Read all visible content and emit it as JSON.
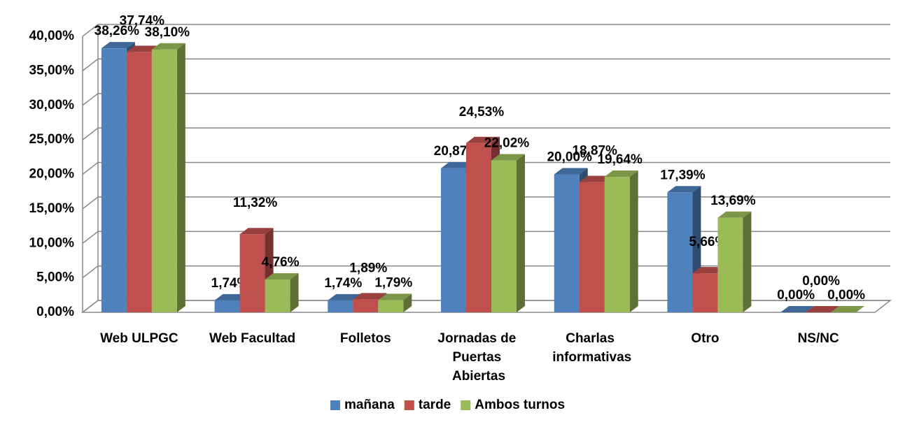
{
  "chart_data": {
    "type": "bar3d",
    "categories": [
      "Web ULPGC",
      "Web Facultad",
      "Folletos",
      "Jornadas de Puertas Abiertas",
      "Charlas informativas",
      "Otro",
      "NS/NC"
    ],
    "series": [
      {
        "name": "mañana",
        "color": "#4f81bd",
        "values": [
          38.26,
          1.74,
          1.74,
          20.87,
          20.0,
          17.39,
          0.0
        ],
        "value_labels": [
          "38,26%",
          "1,74%",
          "1,74%",
          "20,87%",
          "20,00%",
          "17,39%",
          "0,00%"
        ]
      },
      {
        "name": "tarde",
        "color": "#c0504d",
        "values": [
          37.74,
          11.32,
          1.89,
          24.53,
          18.87,
          5.66,
          0.0
        ],
        "value_labels": [
          "37,74%",
          "11,32%",
          "1,89%",
          "24,53%",
          "18,87%",
          "5,66%",
          "0,00%"
        ]
      },
      {
        "name": "Ambos turnos",
        "color": "#9bbb59",
        "values": [
          38.1,
          4.76,
          1.79,
          22.02,
          19.64,
          13.69,
          0.0
        ],
        "value_labels": [
          "38,10%",
          "4,76%",
          "1,79%",
          "22,02%",
          "19,64%",
          "13,69%",
          "0,00%"
        ]
      }
    ],
    "ylim": [
      0,
      40
    ],
    "yticks": [
      {
        "value": 0,
        "label": "0,00%"
      },
      {
        "value": 5,
        "label": "5,00%"
      },
      {
        "value": 10,
        "label": "10,00%"
      },
      {
        "value": 15,
        "label": "15,00%"
      },
      {
        "value": 20,
        "label": "20,00%"
      },
      {
        "value": 25,
        "label": "25,00%"
      },
      {
        "value": 30,
        "label": "30,00%"
      },
      {
        "value": 35,
        "label": "35,00%"
      },
      {
        "value": 40,
        "label": "40,00%"
      }
    ],
    "grid": true,
    "legend": "bottom"
  }
}
